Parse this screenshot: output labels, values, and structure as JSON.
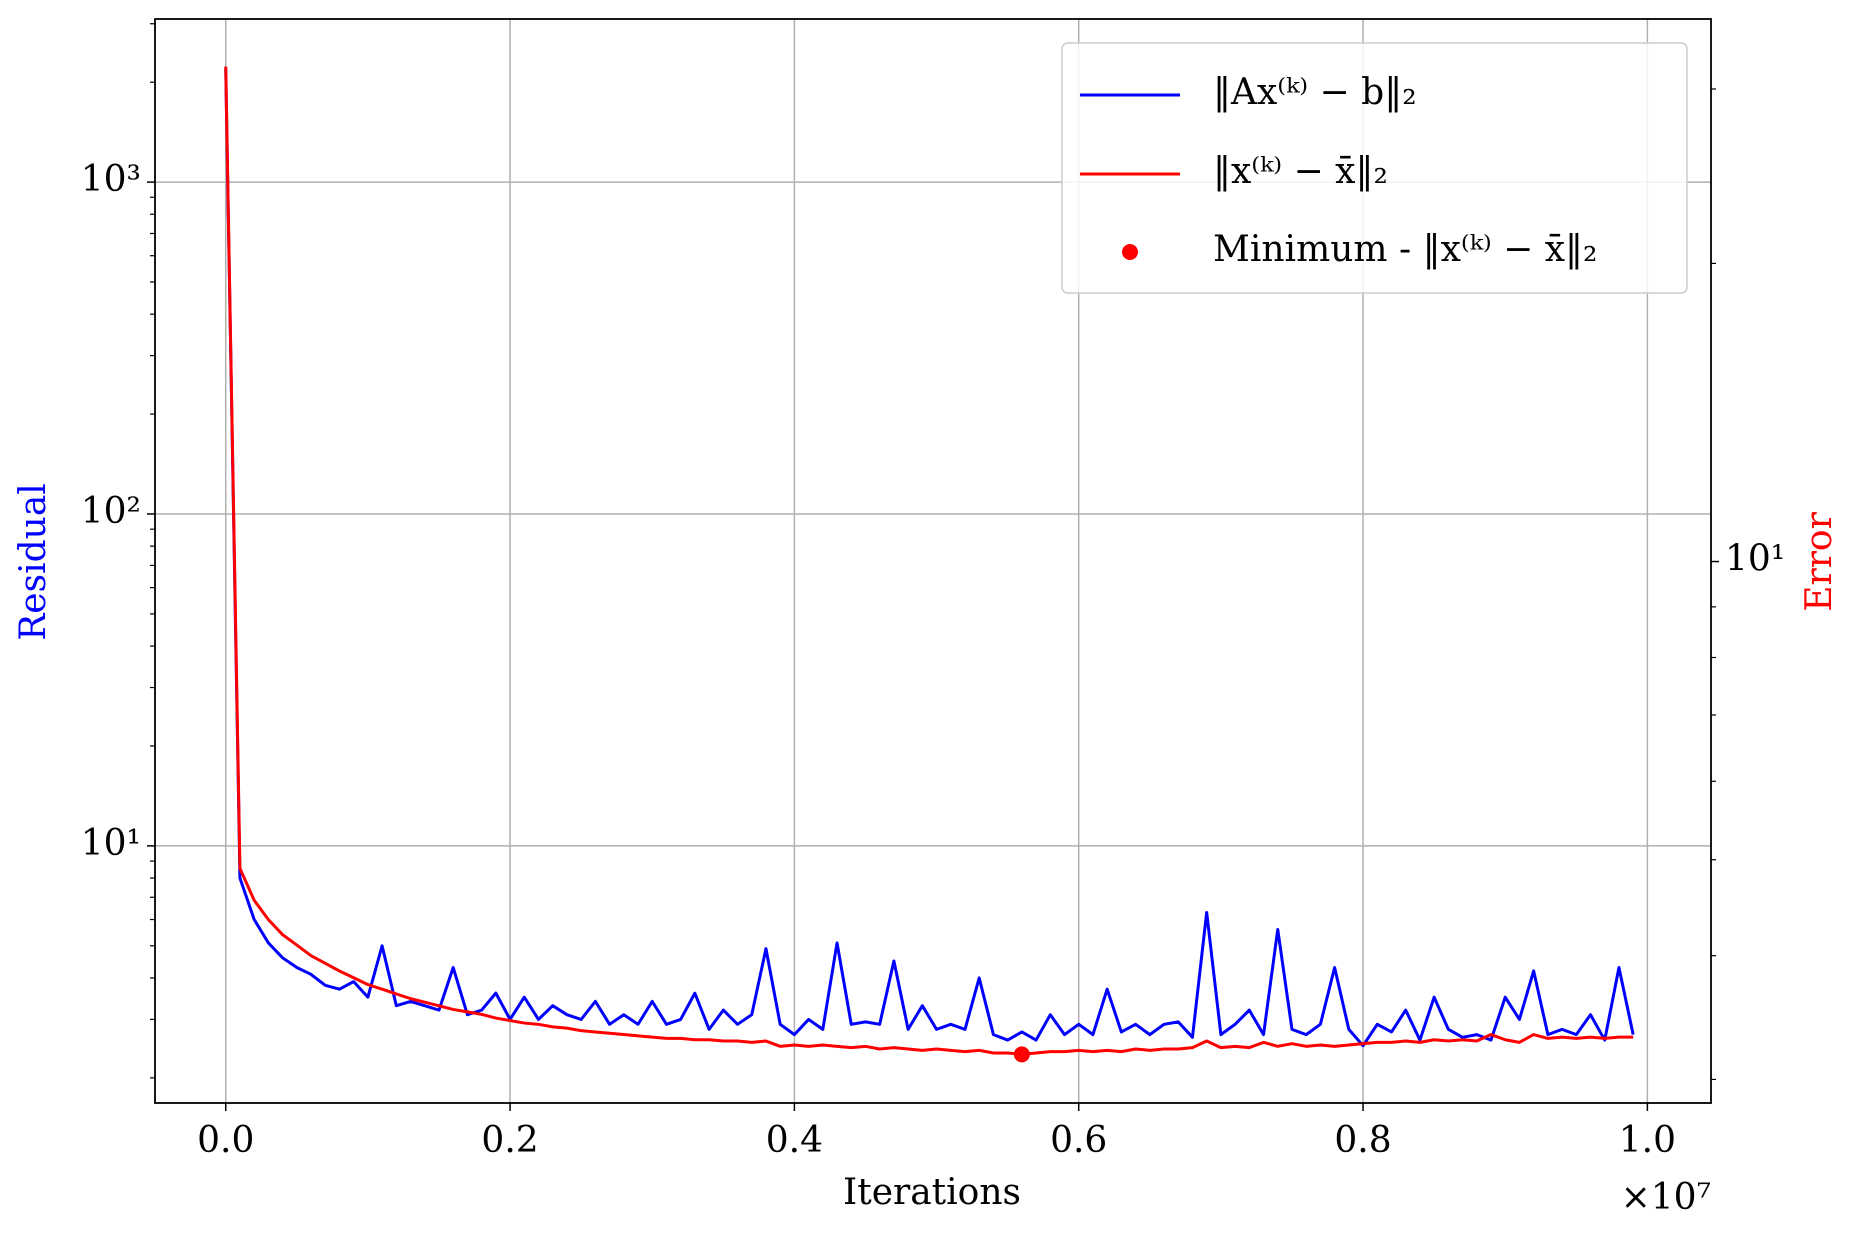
{
  "chart_data": {
    "type": "line",
    "x_label": "Iterations",
    "y_label": "Residual",
    "y2_label": "Error",
    "x_offset_label": "×10⁷",
    "x": [
      0,
      100000,
      200000,
      300000,
      400000,
      500000,
      600000,
      700000,
      800000,
      900000,
      1000000,
      1100000,
      1200000,
      1300000,
      1400000,
      1500000,
      1600000,
      1700000,
      1800000,
      1900000,
      2000000,
      2100000,
      2200000,
      2300000,
      2400000,
      2500000,
      2600000,
      2700000,
      2800000,
      2900000,
      3000000,
      3100000,
      3200000,
      3300000,
      3400000,
      3500000,
      3600000,
      3700000,
      3800000,
      3900000,
      4000000,
      4100000,
      4200000,
      4300000,
      4400000,
      4500000,
      4600000,
      4700000,
      4800000,
      4900000,
      5000000,
      5100000,
      5200000,
      5300000,
      5400000,
      5500000,
      5600000,
      5700000,
      5800000,
      5900000,
      6000000,
      6100000,
      6200000,
      6300000,
      6400000,
      6500000,
      6600000,
      6700000,
      6800000,
      6900000,
      7000000,
      7100000,
      7200000,
      7300000,
      7400000,
      7500000,
      7600000,
      7700000,
      7800000,
      7900000,
      8000000,
      8100000,
      8200000,
      8300000,
      8400000,
      8500000,
      8600000,
      8700000,
      8800000,
      8900000,
      9000000,
      9100000,
      9200000,
      9300000,
      9400000,
      9500000,
      9600000,
      9700000,
      9800000,
      9900000
    ],
    "series": [
      {
        "name": "‖Ax⁽ᵏ⁾ − b‖₂",
        "color": "#0000ff",
        "axis": "y",
        "values": [
          2200,
          8.0,
          6.0,
          5.1,
          4.6,
          4.3,
          4.1,
          3.8,
          3.7,
          3.9,
          3.5,
          5.0,
          3.3,
          3.4,
          3.3,
          3.2,
          4.3,
          3.1,
          3.2,
          3.6,
          3.0,
          3.5,
          3.0,
          3.3,
          3.1,
          3.0,
          3.4,
          2.9,
          3.1,
          2.9,
          3.4,
          2.9,
          3.0,
          3.6,
          2.8,
          3.2,
          2.9,
          3.1,
          4.9,
          2.9,
          2.7,
          3.0,
          2.8,
          5.1,
          2.9,
          2.95,
          2.9,
          4.5,
          2.8,
          3.3,
          2.8,
          2.9,
          2.8,
          4.0,
          2.7,
          2.6,
          2.75,
          2.6,
          3.1,
          2.7,
          2.9,
          2.7,
          3.7,
          2.75,
          2.9,
          2.7,
          2.9,
          2.95,
          2.65,
          6.3,
          2.7,
          2.9,
          3.2,
          2.7,
          5.6,
          2.8,
          2.7,
          2.9,
          4.3,
          2.8,
          2.5,
          2.9,
          2.75,
          3.2,
          2.6,
          3.5,
          2.8,
          2.65,
          2.7,
          2.6,
          3.5,
          3.0,
          4.2,
          2.7,
          2.8,
          2.7,
          3.1,
          2.6,
          4.3,
          2.7
        ]
      },
      {
        "name": "‖x⁽ᵏ⁾ − x̄‖₂",
        "color": "#ff0000",
        "axis": "y2",
        "values": [
          31.6,
          4.9,
          4.55,
          4.35,
          4.2,
          4.1,
          4.0,
          3.93,
          3.86,
          3.8,
          3.74,
          3.7,
          3.66,
          3.62,
          3.59,
          3.56,
          3.53,
          3.51,
          3.49,
          3.46,
          3.44,
          3.42,
          3.41,
          3.39,
          3.38,
          3.36,
          3.35,
          3.34,
          3.33,
          3.32,
          3.31,
          3.3,
          3.3,
          3.29,
          3.29,
          3.28,
          3.28,
          3.27,
          3.28,
          3.24,
          3.25,
          3.24,
          3.25,
          3.24,
          3.23,
          3.24,
          3.22,
          3.23,
          3.22,
          3.21,
          3.22,
          3.21,
          3.2,
          3.21,
          3.19,
          3.19,
          3.18,
          3.19,
          3.2,
          3.2,
          3.21,
          3.2,
          3.21,
          3.2,
          3.22,
          3.21,
          3.22,
          3.22,
          3.23,
          3.28,
          3.23,
          3.24,
          3.23,
          3.27,
          3.24,
          3.26,
          3.24,
          3.25,
          3.24,
          3.25,
          3.26,
          3.27,
          3.27,
          3.28,
          3.27,
          3.29,
          3.28,
          3.29,
          3.28,
          3.33,
          3.29,
          3.27,
          3.33,
          3.3,
          3.31,
          3.3,
          3.31,
          3.3,
          3.31,
          3.31
        ]
      }
    ],
    "minimum": {
      "name": "Minimum - ‖x⁽ᵏ⁾ − x̄‖₂",
      "color": "#ff0000",
      "axis": "y2",
      "x": 5600000,
      "y": 3.18
    },
    "xlim": [
      -497500,
      10447500
    ],
    "xticks": [
      {
        "value": 0,
        "label": "0.0"
      },
      {
        "value": 2000000,
        "label": "0.2"
      },
      {
        "value": 4000000,
        "label": "0.4"
      },
      {
        "value": 6000000,
        "label": "0.6"
      },
      {
        "value": 8000000,
        "label": "0.8"
      },
      {
        "value": 10000000,
        "label": "1.0"
      }
    ],
    "ylim": [
      1.68,
      3100
    ],
    "ylog": true,
    "yticks": [
      {
        "value": 10,
        "label": "10¹"
      },
      {
        "value": 100,
        "label": "10²"
      },
      {
        "value": 1000,
        "label": "10³"
      }
    ],
    "yminorticks": [
      2,
      3,
      4,
      5,
      6,
      7,
      8,
      9,
      20,
      30,
      40,
      50,
      60,
      70,
      80,
      90,
      200,
      300,
      400,
      500,
      600,
      700,
      800,
      900,
      2000,
      3000
    ],
    "y2lim": [
      2.84,
      35.3
    ],
    "y2log": true,
    "y2ticks": [
      {
        "value": 10,
        "label": "10¹"
      }
    ],
    "y2minorticks": [
      3,
      4,
      5,
      6,
      7,
      8,
      9,
      20,
      30
    ],
    "grid": true,
    "legend": "upper right"
  }
}
